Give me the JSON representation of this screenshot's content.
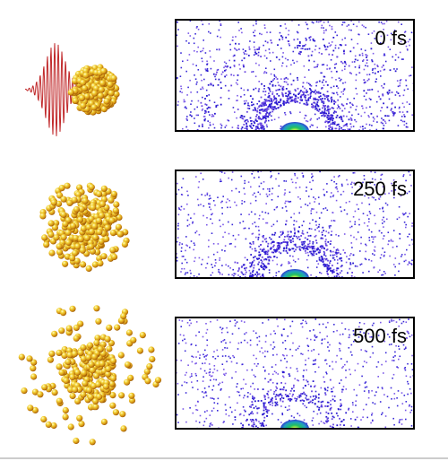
{
  "panels": [
    {
      "label": "0 fs"
    },
    {
      "label": "250 fs"
    },
    {
      "label": "500 fs"
    }
  ]
}
